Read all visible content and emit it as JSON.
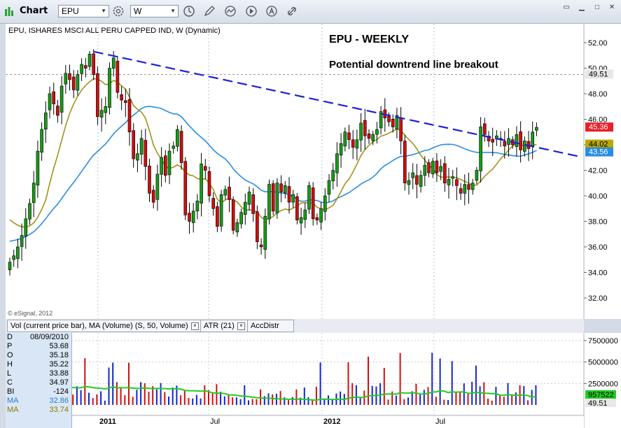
{
  "app": {
    "title": "Chart",
    "symbol": "EPU",
    "interval": "W"
  },
  "chart_title": "EPU, ISHARES MSCI ALL PERU CAPPED IND, W (Dynamic)",
  "annotations": {
    "headline": "EPU - WEEKLY",
    "subhead": "Potential downtrend line breakout",
    "copyright": "© eSignal, 2012"
  },
  "price_axis": {
    "ticks": [
      "52.00",
      "50.00",
      "48.00",
      "46.00",
      "44.00",
      "42.00",
      "40.00",
      "38.00",
      "36.00",
      "34.00",
      "32.00"
    ]
  },
  "price_tags": [
    {
      "label": "49.51",
      "value": 49.51,
      "color": "#e8e8e8",
      "text_color": "#000"
    },
    {
      "label": "45.36",
      "value": 45.36,
      "color": "#e8202a",
      "text_color": "#fff"
    },
    {
      "label": "44.02",
      "value": 44.02,
      "color": "#b8a800",
      "text_color": "#000"
    },
    {
      "label": "43.56",
      "value": 43.56,
      "color": "#2a8de0",
      "text_color": "#fff"
    }
  ],
  "x_axis": {
    "labels": [
      "2011",
      "Jul",
      "2012",
      "Jul"
    ]
  },
  "tabs": [
    {
      "label": "Vol (current price bar), MA (Volume) (S, 50, Volume)"
    },
    {
      "label": "ATR (21)"
    },
    {
      "label": "AccDistr"
    }
  ],
  "volume_axis": {
    "ticks": [
      "7500000",
      "5000000",
      "2500000"
    ],
    "tags": [
      {
        "label": "957522",
        "color": "#22cc22"
      },
      {
        "label": "49.51",
        "color": "#e8e8e8"
      }
    ]
  },
  "data_box": [
    {
      "k": "D",
      "v": "08/09/2010"
    },
    {
      "k": "P",
      "v": "53.68"
    },
    {
      "k": "O",
      "v": "35.18"
    },
    {
      "k": "H",
      "v": "35.22"
    },
    {
      "k": "L",
      "v": "33.88"
    },
    {
      "k": "C",
      "v": "34.97"
    },
    {
      "k": "BI",
      "v": "-124"
    },
    {
      "k": "MA",
      "v": "32.86"
    },
    {
      "k": "MA",
      "v": "33.74"
    }
  ],
  "chart_data": {
    "type": "candlestick",
    "title": "EPU - WEEKLY",
    "ylim": [
      31,
      53.2
    ],
    "trendline": {
      "from": {
        "date": "2011-01-03",
        "y": 51.3
      },
      "to": {
        "date": "2012-11-19",
        "y": 44.7
      }
    },
    "closes": [
      34.8,
      35.3,
      36.0,
      36.9,
      38.2,
      39.4,
      41.0,
      43.5,
      45.2,
      46.5,
      48.0,
      47.2,
      46.3,
      48.6,
      49.6,
      49.1,
      48.3,
      49.5,
      50.3,
      50.0,
      51.1,
      49.5,
      46.2,
      46.7,
      47.0,
      50.0,
      50.8,
      48.1,
      47.5,
      47.3,
      45.0,
      42.9,
      43.3,
      44.5,
      42.3,
      40.2,
      39.5,
      41.7,
      43.0,
      41.6,
      43.5,
      43.9,
      45.2,
      42.6,
      38.5,
      38.0,
      38.8,
      39.6,
      42.5,
      42.0,
      40.0,
      39.0,
      37.6,
      40.1,
      40.5,
      39.7,
      37.3,
      37.9,
      38.7,
      39.5,
      40.3,
      38.6,
      36.4,
      36.0,
      38.4,
      40.9,
      38.8,
      41.0,
      40.3,
      40.8,
      39.5,
      40.1,
      38.1,
      38.3,
      38.9,
      40.8,
      38.2,
      38.1,
      39.0,
      40.0,
      41.2,
      42.0,
      43.3,
      44.1,
      45.0,
      44.4,
      43.8,
      44.4,
      45.7,
      44.7,
      44.5,
      44.8,
      45.2,
      46.6,
      46.1,
      45.8,
      45.4,
      46.3,
      44.3,
      41.0,
      41.2,
      41.8,
      40.9,
      41.6,
      42.4,
      41.8,
      42.7,
      41.8,
      42.3,
      41.0,
      41.3,
      41.5,
      40.8,
      40.2,
      40.9,
      40.5,
      41.0,
      42.0,
      45.4,
      44.8,
      44.3,
      44.2,
      44.7,
      44.5,
      43.9,
      44.5,
      44.0,
      44.8,
      43.6,
      44.3,
      43.7,
      45.0,
      45.36
    ],
    "ma_short_last": 44.02,
    "ma_long_last": 43.56,
    "volume_ma_last": 957522
  }
}
